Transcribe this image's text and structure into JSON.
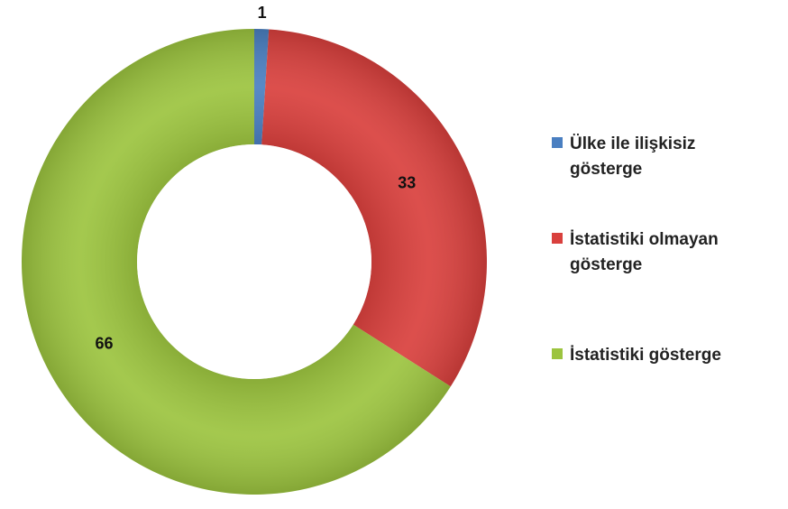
{
  "chart_data": {
    "type": "donut",
    "categories": [
      "Ülke ile ilişkisiz gösterge",
      "İstatistiki olmayan gösterge",
      "İstatistiki gösterge"
    ],
    "values": [
      1,
      33,
      66
    ],
    "colors": [
      "#4a7fc1",
      "#d9403d",
      "#9cc43f"
    ],
    "legend": "right"
  }
}
